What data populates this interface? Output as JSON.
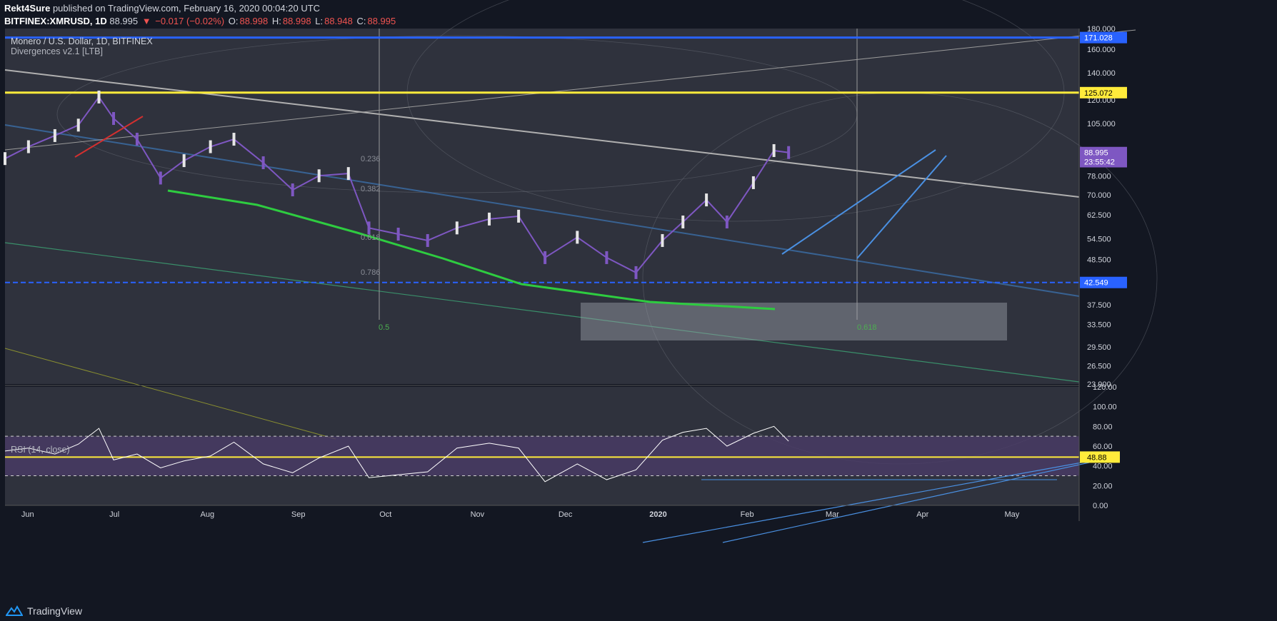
{
  "header": {
    "author": "Rekt4Sure",
    "published": "published on TradingView.com, February 16, 2020 00:04:20 UTC",
    "symbol": "BITFINEX:XMRUSD, 1D",
    "last": "88.995",
    "change": "−0.017 (−0.02%)",
    "o_label": "O:",
    "o": "88.998",
    "h_label": "H:",
    "h": "88.998",
    "l_label": "L:",
    "l": "88.948",
    "c_label": "C:",
    "c": "88.995"
  },
  "legend": {
    "title": "Monero / U.S. Dollar, 1D, BITFINEX",
    "indicator": "Divergences v2.1 [LTB]",
    "rsi": "RSI (14, close)"
  },
  "footer": {
    "brand": "TradingView"
  },
  "colors": {
    "background": "#131722",
    "pane": "#2f323d",
    "up": "#e6e6e6",
    "down": "#7e57c2",
    "yellow": "#ffeb3b",
    "blue": "#2962ff",
    "green": "#2ecc40",
    "rsi_line": "#ffffff",
    "rsi_band": "#4a3b66"
  },
  "chart_data": [
    {
      "type": "candlestick",
      "title": "Monero / U.S. Dollar, 1D, BITFINEX",
      "scale": "log",
      "ylim": [
        23.9,
        180
      ],
      "x_ticks": [
        "Jun",
        "Jul",
        "Aug",
        "Sep",
        "Oct",
        "Nov",
        "Dec",
        "2020",
        "Feb",
        "Mar",
        "Apr",
        "May"
      ],
      "y_ticks": [
        "180.000",
        "160.000",
        "140.000",
        "120.000",
        "105.000",
        "88.995",
        "78.000",
        "70.000",
        "62.500",
        "54.500",
        "48.500",
        "42.549",
        "37.500",
        "33.500",
        "29.500",
        "26.500",
        "23.900"
      ],
      "price_labels": [
        {
          "value": "171.028",
          "level": 171.028,
          "color": "#2962ff",
          "text": "#ffffff"
        },
        {
          "value": "125.072",
          "level": 125.072,
          "color": "#ffeb3b",
          "text": "#000000"
        },
        {
          "value": "88.995",
          "level": 88.995,
          "color": "#7e57c2",
          "text": "#ffffff"
        },
        {
          "value": "23:55:42",
          "level": 84.5,
          "color": "#7e57c2",
          "text": "#ffffff"
        },
        {
          "value": "42.549",
          "level": 42.549,
          "color": "#2962ff",
          "text": "#ffffff"
        }
      ],
      "horizontal_lines": [
        {
          "level": 171.028,
          "color": "#2962ff",
          "style": "solid"
        },
        {
          "level": 125.072,
          "color": "#ffeb3b",
          "style": "solid"
        },
        {
          "level": 42.549,
          "color": "#2962ff",
          "style": "dashed"
        }
      ],
      "fib_labels": [
        "0.236",
        "0.382",
        "0.618",
        "0.786",
        "0.5",
        "0.618"
      ],
      "close_series": [
        {
          "date": "2019-05-24",
          "close": 86
        },
        {
          "date": "2019-06-01",
          "close": 92
        },
        {
          "date": "2019-06-10",
          "close": 98
        },
        {
          "date": "2019-06-18",
          "close": 104
        },
        {
          "date": "2019-06-25",
          "close": 122
        },
        {
          "date": "2019-06-30",
          "close": 108
        },
        {
          "date": "2019-07-08",
          "close": 96
        },
        {
          "date": "2019-07-16",
          "close": 77
        },
        {
          "date": "2019-07-24",
          "close": 85
        },
        {
          "date": "2019-08-02",
          "close": 92
        },
        {
          "date": "2019-08-10",
          "close": 96
        },
        {
          "date": "2019-08-20",
          "close": 84
        },
        {
          "date": "2019-08-30",
          "close": 72
        },
        {
          "date": "2019-09-08",
          "close": 78
        },
        {
          "date": "2019-09-18",
          "close": 79
        },
        {
          "date": "2019-09-25",
          "close": 58
        },
        {
          "date": "2019-10-05",
          "close": 56
        },
        {
          "date": "2019-10-15",
          "close": 54
        },
        {
          "date": "2019-10-25",
          "close": 58
        },
        {
          "date": "2019-11-05",
          "close": 61
        },
        {
          "date": "2019-11-15",
          "close": 62
        },
        {
          "date": "2019-11-24",
          "close": 49
        },
        {
          "date": "2019-12-05",
          "close": 55
        },
        {
          "date": "2019-12-15",
          "close": 49
        },
        {
          "date": "2019-12-25",
          "close": 45
        },
        {
          "date": "2020-01-03",
          "close": 54
        },
        {
          "date": "2020-01-10",
          "close": 60
        },
        {
          "date": "2020-01-18",
          "close": 68
        },
        {
          "date": "2020-01-25",
          "close": 60
        },
        {
          "date": "2020-02-03",
          "close": 75
        },
        {
          "date": "2020-02-10",
          "close": 90
        },
        {
          "date": "2020-02-15",
          "close": 88.995
        }
      ]
    },
    {
      "type": "line",
      "title": "RSI (14, close)",
      "ylim": [
        0,
        120
      ],
      "y_ticks": [
        "120.00",
        "100.00",
        "80.00",
        "60.00",
        "40.00",
        "20.00",
        "0.00"
      ],
      "bands": [
        30,
        70
      ],
      "price_labels": [
        {
          "value": "48.88",
          "level": 48.88,
          "color": "#ffeb3b",
          "text": "#000000"
        }
      ],
      "series": [
        {
          "values": [
            {
              "date": "2019-05-24",
              "rsi": 55
            },
            {
              "date": "2019-06-01",
              "rsi": 58
            },
            {
              "date": "2019-06-10",
              "rsi": 52
            },
            {
              "date": "2019-06-18",
              "rsi": 62
            },
            {
              "date": "2019-06-25",
              "rsi": 78
            },
            {
              "date": "2019-06-30",
              "rsi": 46
            },
            {
              "date": "2019-07-08",
              "rsi": 52
            },
            {
              "date": "2019-07-16",
              "rsi": 38
            },
            {
              "date": "2019-07-24",
              "rsi": 45
            },
            {
              "date": "2019-08-02",
              "rsi": 50
            },
            {
              "date": "2019-08-10",
              "rsi": 64
            },
            {
              "date": "2019-08-20",
              "rsi": 42
            },
            {
              "date": "2019-08-30",
              "rsi": 33
            },
            {
              "date": "2019-09-08",
              "rsi": 48
            },
            {
              "date": "2019-09-18",
              "rsi": 60
            },
            {
              "date": "2019-09-25",
              "rsi": 28
            },
            {
              "date": "2019-10-05",
              "rsi": 31
            },
            {
              "date": "2019-10-15",
              "rsi": 34
            },
            {
              "date": "2019-10-25",
              "rsi": 58
            },
            {
              "date": "2019-11-05",
              "rsi": 63
            },
            {
              "date": "2019-11-15",
              "rsi": 58
            },
            {
              "date": "2019-11-24",
              "rsi": 24
            },
            {
              "date": "2019-12-05",
              "rsi": 42
            },
            {
              "date": "2019-12-15",
              "rsi": 26
            },
            {
              "date": "2019-12-25",
              "rsi": 36
            },
            {
              "date": "2020-01-03",
              "rsi": 66
            },
            {
              "date": "2020-01-10",
              "rsi": 74
            },
            {
              "date": "2020-01-18",
              "rsi": 78
            },
            {
              "date": "2020-01-25",
              "rsi": 60
            },
            {
              "date": "2020-02-03",
              "rsi": 73
            },
            {
              "date": "2020-02-10",
              "rsi": 80
            },
            {
              "date": "2020-02-15",
              "rsi": 65
            }
          ]
        }
      ]
    }
  ]
}
